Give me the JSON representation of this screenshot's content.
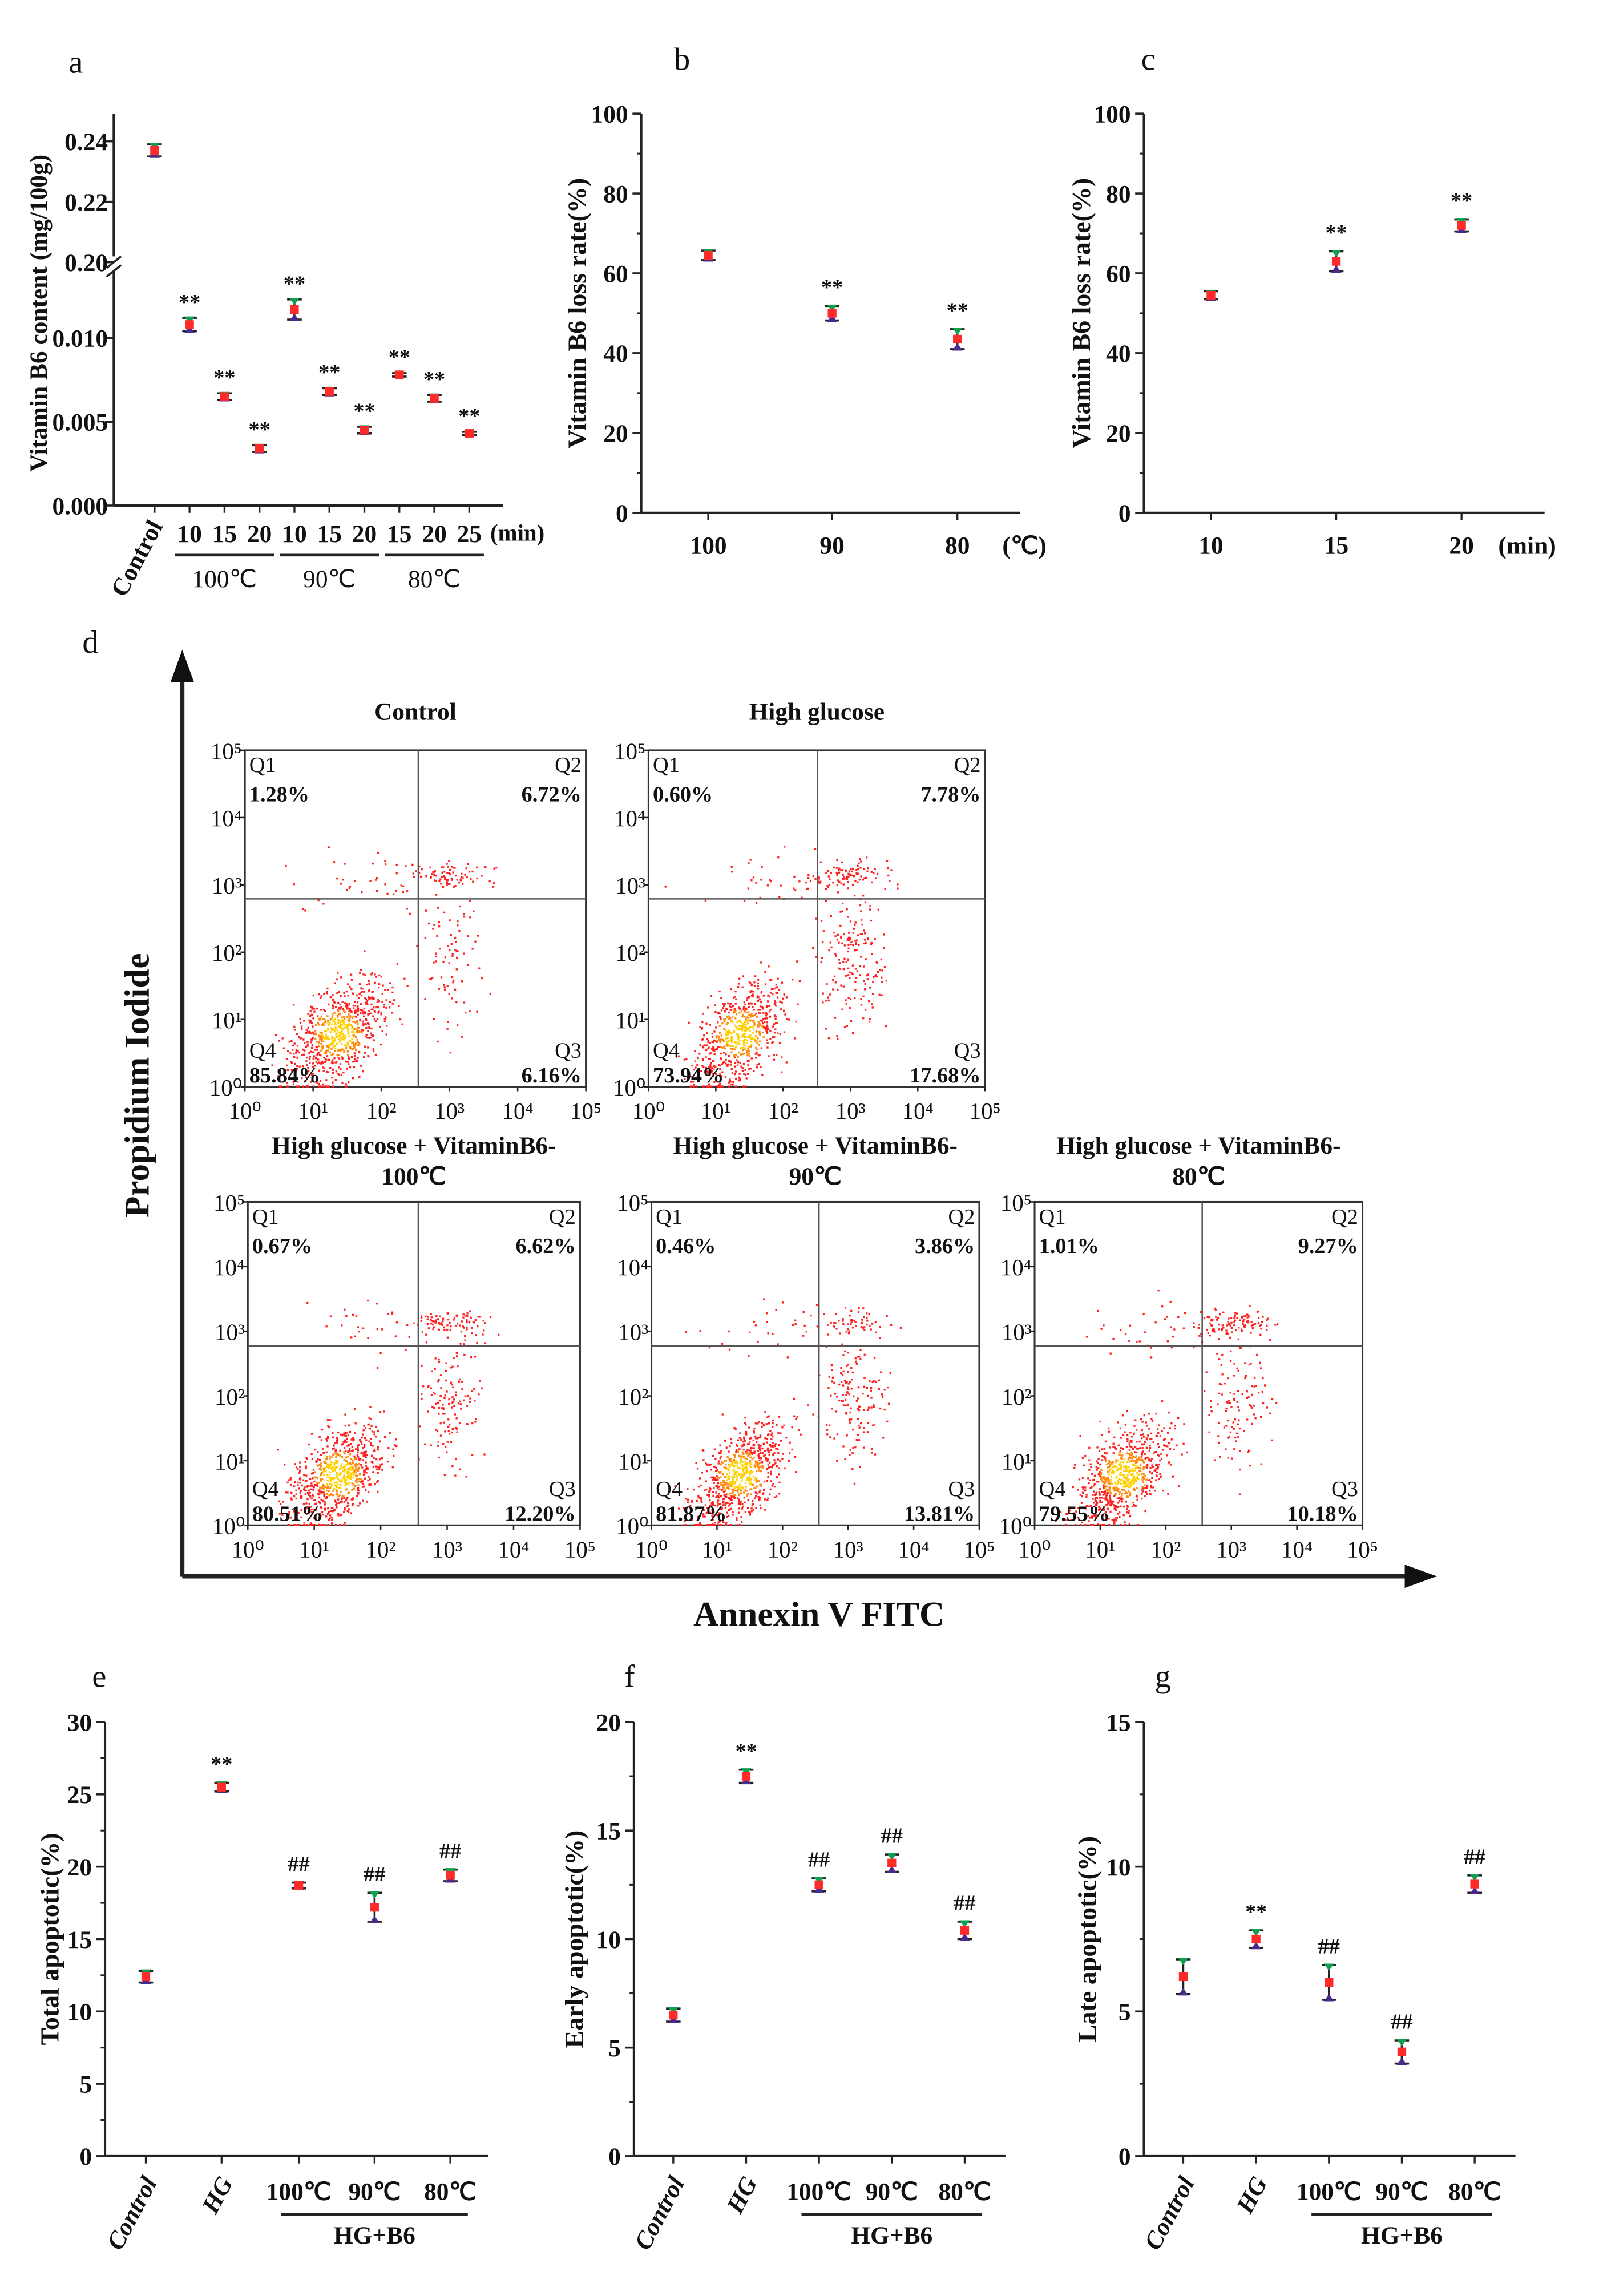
{
  "colors": {
    "mean": "#ff2a2a",
    "rep_high": "#10a050",
    "rep_low": "#4b2a8a",
    "flow_low": "#ff2020",
    "flow_high": "#ffd000"
  },
  "chart_data": [
    {
      "panel": "a",
      "type": "scatter",
      "ylabel": "Vitamin B6 content (mg/100g)",
      "categories": [
        "Control",
        "10",
        "15",
        "20",
        "10",
        "15",
        "20",
        "15",
        "20",
        "25"
      ],
      "x_unit": "(min)",
      "groups": [
        {
          "label": "100℃",
          "members": [
            1,
            2,
            3
          ]
        },
        {
          "label": "90℃",
          "members": [
            4,
            5,
            6
          ]
        },
        {
          "label": "80℃",
          "members": [
            7,
            8,
            9
          ]
        }
      ],
      "values": [
        0.237,
        0.0108,
        0.0065,
        0.0034,
        0.0117,
        0.0068,
        0.0045,
        0.0078,
        0.0064,
        0.0043
      ],
      "errors": [
        0.002,
        0.0004,
        0.0002,
        0.0002,
        0.0006,
        0.0002,
        0.0002,
        0.0001,
        0.0002,
        0.0001
      ],
      "annotations": [
        "",
        "**",
        "**",
        "**",
        "**",
        "**",
        "**",
        "**",
        "**",
        "**"
      ],
      "yticks_lower": [
        "0.000",
        "0.005",
        "0.010"
      ],
      "yticks_upper": [
        "0.20",
        "0.22",
        "0.24"
      ],
      "ylim_lower": [
        0,
        0.0145
      ],
      "ylim_upper": [
        0.2,
        0.25
      ]
    },
    {
      "panel": "b",
      "type": "scatter",
      "ylabel": "Vitamin B6 loss rate(%)",
      "categories": [
        "100",
        "90",
        "80"
      ],
      "x_unit": "(℃)",
      "values": [
        64.5,
        50.0,
        43.5
      ],
      "errors": [
        1.2,
        1.8,
        2.5
      ],
      "annotations": [
        "",
        "**",
        "**"
      ],
      "yticks": [
        "0",
        "20",
        "40",
        "60",
        "80",
        "100"
      ],
      "ylim": [
        0,
        100
      ]
    },
    {
      "panel": "c",
      "type": "scatter",
      "ylabel": "Vitamin B6 loss rate(%)",
      "categories": [
        "10",
        "15",
        "20"
      ],
      "x_unit": "(min)",
      "values": [
        54.5,
        63.0,
        72.0
      ],
      "errors": [
        1.0,
        2.5,
        1.5
      ],
      "annotations": [
        "",
        "**",
        "**"
      ],
      "yticks": [
        "0",
        "20",
        "40",
        "60",
        "80",
        "100"
      ],
      "ylim": [
        0,
        100
      ]
    },
    {
      "panel": "e",
      "type": "scatter",
      "ylabel": "Total apoptotic(%)",
      "categories": [
        "Control",
        "HG",
        "100℃",
        "90℃",
        "80℃"
      ],
      "bracket_label": "HG+B6",
      "values": [
        12.4,
        25.5,
        18.7,
        17.2,
        19.4
      ],
      "errors": [
        0.4,
        0.3,
        0.2,
        1.0,
        0.4
      ],
      "annotations": [
        "",
        "**",
        "##",
        "##",
        "##"
      ],
      "yticks": [
        "0",
        "5",
        "10",
        "15",
        "20",
        "25",
        "30"
      ],
      "ylim": [
        0,
        30
      ]
    },
    {
      "panel": "f",
      "type": "scatter",
      "ylabel": "Early apoptotic(%)",
      "categories": [
        "Control",
        "HG",
        "100℃",
        "90℃",
        "80℃"
      ],
      "bracket_label": "HG+B6",
      "values": [
        6.5,
        17.5,
        12.5,
        13.5,
        10.4
      ],
      "errors": [
        0.3,
        0.3,
        0.3,
        0.4,
        0.4
      ],
      "annotations": [
        "",
        "**",
        "##",
        "##",
        "##"
      ],
      "yticks": [
        "0",
        "5",
        "10",
        "15",
        "20"
      ],
      "ylim": [
        0,
        20
      ]
    },
    {
      "panel": "g",
      "type": "scatter",
      "ylabel": "Late apoptotic(%)",
      "categories": [
        "Control",
        "HG",
        "100℃",
        "90℃",
        "80℃"
      ],
      "bracket_label": "HG+B6",
      "values": [
        6.2,
        7.5,
        6.0,
        3.6,
        9.4
      ],
      "errors": [
        0.6,
        0.3,
        0.6,
        0.4,
        0.3
      ],
      "annotations": [
        "",
        "**",
        "##",
        "##",
        "##"
      ],
      "yticks": [
        "0",
        "5",
        "10",
        "15"
      ],
      "ylim": [
        0,
        15
      ]
    }
  ],
  "flow": {
    "panel": "d",
    "ylabel": "Propidium Iodide",
    "xlabel": "Annexin V FITC",
    "ticks": [
      "10⁰",
      "10¹",
      "10²",
      "10³",
      "10⁴",
      "10⁵"
    ],
    "quadrant_names": [
      "Q1",
      "Q2",
      "Q3",
      "Q4"
    ],
    "plots": [
      {
        "title": [
          "Control"
        ],
        "Q1": "1.28%",
        "Q2": "6.72%",
        "Q3": "6.16%",
        "Q4": "85.84%"
      },
      {
        "title": [
          "High glucose"
        ],
        "Q1": "0.60%",
        "Q2": "7.78%",
        "Q3": "17.68%",
        "Q4": "73.94%"
      },
      {
        "title": [
          "High glucose + VitaminB6-",
          "100℃"
        ],
        "Q1": "0.67%",
        "Q2": "6.62%",
        "Q3": "12.20%",
        "Q4": "80.51%"
      },
      {
        "title": [
          "High glucose + VitaminB6-",
          "90℃"
        ],
        "Q1": "0.46%",
        "Q2": "3.86%",
        "Q3": "13.81%",
        "Q4": "81.87%"
      },
      {
        "title": [
          "High glucose + VitaminB6-",
          "80℃"
        ],
        "Q1": "1.01%",
        "Q2": "9.27%",
        "Q3": "10.18%",
        "Q4": "79.55%"
      }
    ]
  }
}
